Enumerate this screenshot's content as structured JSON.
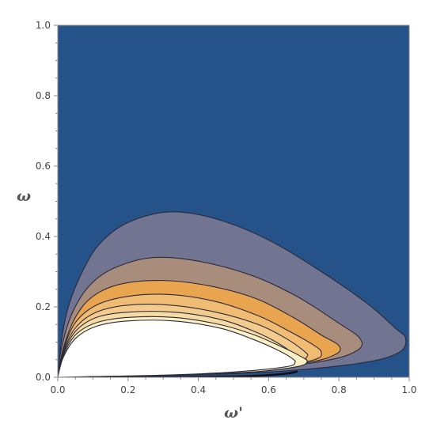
{
  "chart_data": {
    "type": "contour",
    "xlabel": "ω'",
    "ylabel": "ω",
    "xlim": [
      0.0,
      1.0
    ],
    "ylim": [
      0.0,
      1.0
    ],
    "x_ticks": [
      "0.0",
      "0.2",
      "0.4",
      "0.6",
      "0.8",
      "1.0"
    ],
    "y_ticks": [
      "0.0",
      "0.2",
      "0.4",
      "0.6",
      "0.8",
      "1.0"
    ],
    "grid": false,
    "legend": "none",
    "background_color": "#26528a",
    "contour_line_color": "#2a2a3a",
    "contour_levels": [
      {
        "name": "level-1",
        "fill": "#727592",
        "outline": [
          [
            0.0,
            0.0
          ],
          [
            0.01,
            0.1
          ],
          [
            0.03,
            0.2
          ],
          [
            0.07,
            0.3
          ],
          [
            0.12,
            0.38
          ],
          [
            0.2,
            0.44
          ],
          [
            0.32,
            0.47
          ],
          [
            0.45,
            0.45
          ],
          [
            0.6,
            0.39
          ],
          [
            0.75,
            0.3
          ],
          [
            0.88,
            0.21
          ],
          [
            0.96,
            0.14
          ],
          [
            0.99,
            0.11
          ],
          [
            0.97,
            0.07
          ],
          [
            0.86,
            0.04
          ],
          [
            0.6,
            0.015
          ],
          [
            0.3,
            0.005
          ],
          [
            0.0,
            0.0
          ]
        ]
      },
      {
        "name": "level-2",
        "fill": "#a88c7c",
        "outline": [
          [
            0.0,
            0.0
          ],
          [
            0.01,
            0.08
          ],
          [
            0.04,
            0.18
          ],
          [
            0.09,
            0.26
          ],
          [
            0.16,
            0.31
          ],
          [
            0.27,
            0.34
          ],
          [
            0.4,
            0.33
          ],
          [
            0.55,
            0.29
          ],
          [
            0.68,
            0.23
          ],
          [
            0.79,
            0.16
          ],
          [
            0.86,
            0.11
          ],
          [
            0.85,
            0.075
          ],
          [
            0.75,
            0.045
          ],
          [
            0.5,
            0.015
          ],
          [
            0.25,
            0.005
          ],
          [
            0.0,
            0.0
          ]
        ]
      },
      {
        "name": "level-3",
        "fill": "#e9a450",
        "outline": [
          [
            0.0,
            0.0
          ],
          [
            0.015,
            0.08
          ],
          [
            0.05,
            0.17
          ],
          [
            0.1,
            0.23
          ],
          [
            0.18,
            0.265
          ],
          [
            0.3,
            0.275
          ],
          [
            0.43,
            0.26
          ],
          [
            0.56,
            0.225
          ],
          [
            0.67,
            0.17
          ],
          [
            0.75,
            0.12
          ],
          [
            0.8,
            0.09
          ],
          [
            0.79,
            0.065
          ],
          [
            0.7,
            0.04
          ],
          [
            0.45,
            0.012
          ],
          [
            0.2,
            0.004
          ],
          [
            0.0,
            0.0
          ]
        ]
      },
      {
        "name": "level-4",
        "fill": "#f0bb72",
        "outline": [
          [
            0.0,
            0.0
          ],
          [
            0.015,
            0.075
          ],
          [
            0.05,
            0.155
          ],
          [
            0.11,
            0.205
          ],
          [
            0.2,
            0.23
          ],
          [
            0.32,
            0.235
          ],
          [
            0.45,
            0.215
          ],
          [
            0.57,
            0.175
          ],
          [
            0.66,
            0.13
          ],
          [
            0.73,
            0.09
          ],
          [
            0.75,
            0.07
          ],
          [
            0.73,
            0.05
          ],
          [
            0.6,
            0.025
          ],
          [
            0.35,
            0.008
          ],
          [
            0.0,
            0.0
          ]
        ]
      },
      {
        "name": "level-5",
        "fill": "#f3cc8d",
        "outline": [
          [
            0.0,
            0.0
          ],
          [
            0.015,
            0.07
          ],
          [
            0.05,
            0.14
          ],
          [
            0.11,
            0.185
          ],
          [
            0.2,
            0.205
          ],
          [
            0.32,
            0.205
          ],
          [
            0.45,
            0.185
          ],
          [
            0.57,
            0.15
          ],
          [
            0.65,
            0.11
          ],
          [
            0.7,
            0.075
          ],
          [
            0.71,
            0.06
          ],
          [
            0.68,
            0.042
          ],
          [
            0.55,
            0.02
          ],
          [
            0.3,
            0.006
          ],
          [
            0.0,
            0.0
          ]
        ]
      },
      {
        "name": "level-6",
        "fill": "#f6dba5",
        "outline": [
          [
            0.0,
            0.0
          ],
          [
            0.015,
            0.065
          ],
          [
            0.05,
            0.13
          ],
          [
            0.11,
            0.17
          ],
          [
            0.2,
            0.185
          ],
          [
            0.33,
            0.185
          ],
          [
            0.46,
            0.165
          ],
          [
            0.56,
            0.13
          ],
          [
            0.63,
            0.095
          ],
          [
            0.67,
            0.065
          ],
          [
            0.665,
            0.05
          ],
          [
            0.6,
            0.03
          ],
          [
            0.4,
            0.01
          ],
          [
            0.0,
            0.0
          ]
        ]
      },
      {
        "name": "level-7",
        "fill": "#fbf0c4",
        "outline": [
          [
            0.0,
            0.0
          ],
          [
            0.015,
            0.06
          ],
          [
            0.05,
            0.12
          ],
          [
            0.11,
            0.155
          ],
          [
            0.2,
            0.17
          ],
          [
            0.33,
            0.17
          ],
          [
            0.46,
            0.15
          ],
          [
            0.56,
            0.12
          ],
          [
            0.64,
            0.085
          ],
          [
            0.69,
            0.06
          ],
          [
            0.71,
            0.045
          ],
          [
            0.68,
            0.03
          ],
          [
            0.55,
            0.015
          ],
          [
            0.3,
            0.005
          ],
          [
            0.0,
            0.0
          ]
        ]
      },
      {
        "name": "level-8",
        "fill": "#ffffff",
        "outline": [
          [
            0.0,
            0.0
          ],
          [
            0.015,
            0.055
          ],
          [
            0.05,
            0.11
          ],
          [
            0.11,
            0.145
          ],
          [
            0.2,
            0.16
          ],
          [
            0.33,
            0.16
          ],
          [
            0.46,
            0.14
          ],
          [
            0.55,
            0.11
          ],
          [
            0.62,
            0.08
          ],
          [
            0.665,
            0.055
          ],
          [
            0.675,
            0.042
          ],
          [
            0.65,
            0.03
          ],
          [
            0.5,
            0.015
          ],
          [
            0.3,
            0.006
          ],
          [
            0.1,
            0.002
          ],
          [
            0.0,
            0.0
          ]
        ]
      }
    ],
    "boundary_curve": {
      "color": "#111111",
      "points": [
        [
          0.09,
          0.0
        ],
        [
          0.3,
          0.0
        ],
        [
          0.5,
          0.002
        ],
        [
          0.6,
          0.006
        ],
        [
          0.66,
          0.012
        ],
        [
          0.68,
          0.016
        ]
      ]
    }
  }
}
